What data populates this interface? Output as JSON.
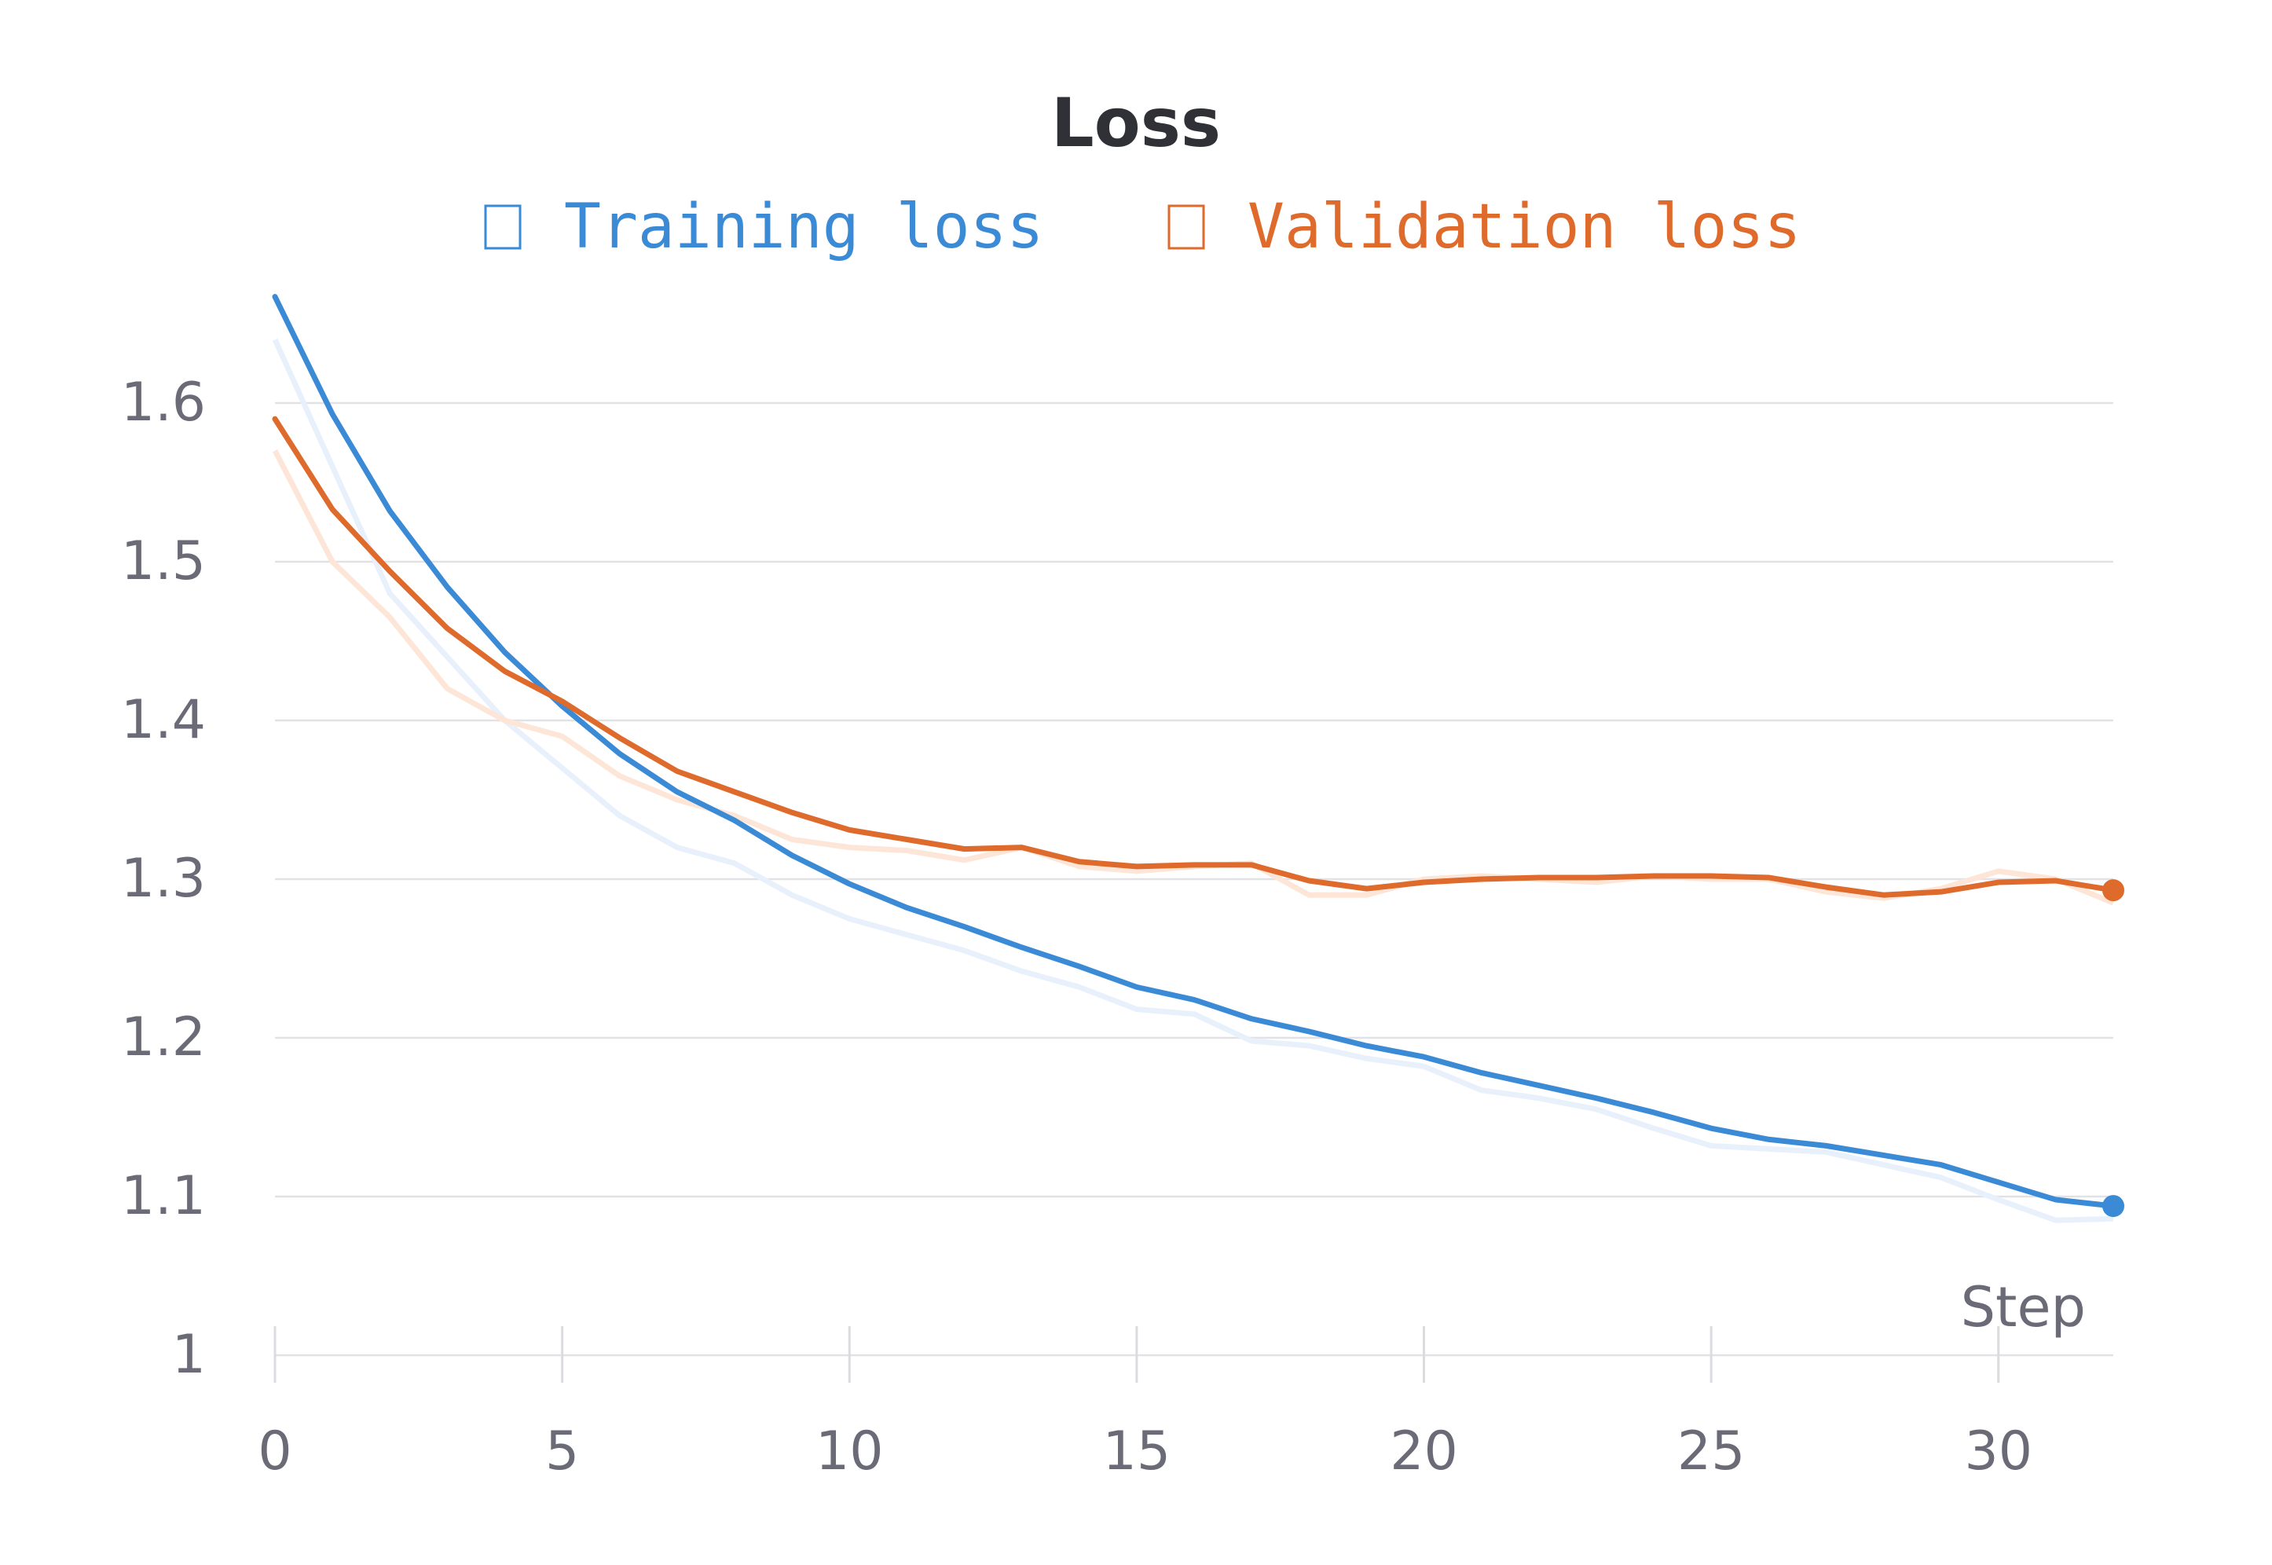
{
  "chart_data": {
    "type": "line",
    "title": "Loss",
    "xlabel": "Step",
    "ylabel": "",
    "xlim": [
      0,
      32
    ],
    "ylim": [
      1.0,
      1.67
    ],
    "x_ticks": [
      0,
      5,
      10,
      15,
      20,
      25,
      30
    ],
    "y_ticks": [
      1,
      1.1,
      1.2,
      1.3,
      1.4,
      1.5,
      1.6
    ],
    "y_tick_labels": [
      "1",
      "1.1",
      "1.2",
      "1.3",
      "1.4",
      "1.5",
      "1.6"
    ],
    "grid": true,
    "legend_position": "top-center",
    "x": [
      0,
      1,
      2,
      3,
      4,
      5,
      6,
      7,
      8,
      9,
      10,
      11,
      12,
      13,
      14,
      15,
      16,
      17,
      18,
      19,
      20,
      21,
      22,
      23,
      24,
      25,
      26,
      27,
      28,
      29,
      30,
      31,
      32
    ],
    "series": [
      {
        "name": "Training loss",
        "color": "#3a8ad6",
        "values": [
          1.667,
          1.593,
          1.532,
          1.484,
          1.443,
          1.409,
          1.379,
          1.355,
          1.337,
          1.315,
          1.297,
          1.282,
          1.27,
          1.257,
          1.245,
          1.232,
          1.224,
          1.212,
          1.204,
          1.195,
          1.188,
          1.178,
          1.17,
          1.162,
          1.153,
          1.143,
          1.136,
          1.132,
          1.126,
          1.12,
          1.109,
          1.098,
          1.094
        ],
        "raw_values": [
          1.64,
          1.56,
          1.48,
          1.44,
          1.4,
          1.37,
          1.34,
          1.32,
          1.31,
          1.29,
          1.275,
          1.265,
          1.255,
          1.242,
          1.232,
          1.218,
          1.215,
          1.198,
          1.195,
          1.187,
          1.182,
          1.167,
          1.162,
          1.155,
          1.143,
          1.132,
          1.13,
          1.128,
          1.12,
          1.112,
          1.098,
          1.085,
          1.086
        ]
      },
      {
        "name": "Validation loss",
        "color": "#de6a2c",
        "values": [
          1.59,
          1.533,
          1.494,
          1.458,
          1.431,
          1.412,
          1.389,
          1.368,
          1.355,
          1.342,
          1.331,
          1.325,
          1.319,
          1.32,
          1.311,
          1.308,
          1.309,
          1.309,
          1.299,
          1.294,
          1.298,
          1.3,
          1.301,
          1.301,
          1.302,
          1.302,
          1.301,
          1.295,
          1.29,
          1.292,
          1.298,
          1.299,
          1.293
        ],
        "raw_values": [
          1.57,
          1.5,
          1.465,
          1.42,
          1.4,
          1.39,
          1.365,
          1.35,
          1.34,
          1.325,
          1.32,
          1.318,
          1.312,
          1.32,
          1.308,
          1.305,
          1.308,
          1.31,
          1.29,
          1.29,
          1.3,
          1.302,
          1.3,
          1.298,
          1.302,
          1.3,
          1.3,
          1.292,
          1.288,
          1.294,
          1.305,
          1.3,
          1.285
        ]
      }
    ]
  }
}
